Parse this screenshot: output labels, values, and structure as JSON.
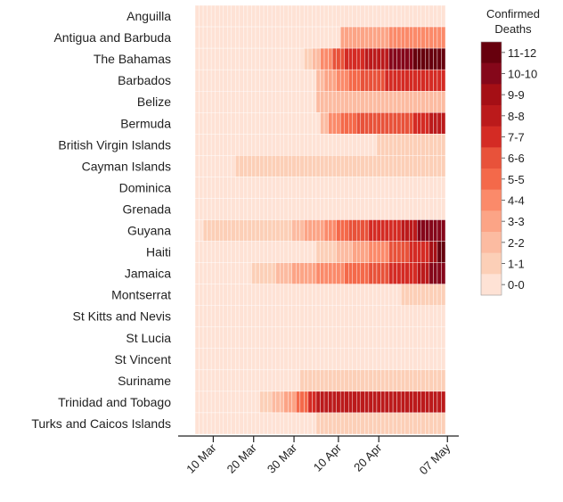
{
  "chart_data": {
    "type": "heatmap",
    "title": "",
    "xlabel": "",
    "ylabel": "",
    "x_ticks": [
      "10 Mar",
      "20 Mar",
      "30 Mar",
      "10 Apr",
      "20 Apr",
      "07 May"
    ],
    "x_range": [
      "06 Mar",
      "07 May"
    ],
    "rows": [
      {
        "name": "Anguilla",
        "segments": []
      },
      {
        "name": "Antigua and Barbuda",
        "segments": [
          [
            36,
            3
          ],
          [
            48,
            4
          ]
        ]
      },
      {
        "name": "The Bahamas",
        "segments": [
          [
            27,
            1
          ],
          [
            29,
            2
          ],
          [
            31,
            4
          ],
          [
            34,
            6
          ],
          [
            37,
            7
          ],
          [
            42,
            8
          ],
          [
            48,
            10
          ],
          [
            54,
            11
          ]
        ]
      },
      {
        "name": "Barbados",
        "segments": [
          [
            30,
            2
          ],
          [
            32,
            3
          ],
          [
            35,
            4
          ],
          [
            38,
            5
          ],
          [
            41,
            6
          ],
          [
            47,
            7
          ]
        ]
      },
      {
        "name": "Belize",
        "segments": [
          [
            30,
            2
          ]
        ]
      },
      {
        "name": "Bermuda",
        "segments": [
          [
            31,
            2
          ],
          [
            33,
            4
          ],
          [
            36,
            5
          ],
          [
            40,
            6
          ],
          [
            54,
            7
          ],
          [
            58,
            8
          ]
        ]
      },
      {
        "name": "British Virgin Islands",
        "segments": [
          [
            45,
            1
          ]
        ]
      },
      {
        "name": "Cayman Islands",
        "segments": [
          [
            10,
            1
          ]
        ]
      },
      {
        "name": "Dominica",
        "segments": []
      },
      {
        "name": "Grenada",
        "segments": []
      },
      {
        "name": "Guyana",
        "segments": [
          [
            2,
            1
          ],
          [
            24,
            2
          ],
          [
            27,
            3
          ],
          [
            32,
            4
          ],
          [
            35,
            5
          ],
          [
            38,
            6
          ],
          [
            43,
            7
          ],
          [
            51,
            8
          ],
          [
            55,
            10
          ]
        ]
      },
      {
        "name": "Haiti",
        "segments": [
          [
            30,
            1
          ],
          [
            35,
            2
          ],
          [
            39,
            3
          ],
          [
            43,
            4
          ],
          [
            48,
            6
          ],
          [
            53,
            7
          ],
          [
            58,
            9
          ],
          [
            60,
            11
          ]
        ]
      },
      {
        "name": "Jamaica",
        "segments": [
          [
            14,
            1
          ],
          [
            20,
            2
          ],
          [
            24,
            3
          ],
          [
            30,
            4
          ],
          [
            37,
            5
          ],
          [
            43,
            6
          ],
          [
            48,
            7
          ],
          [
            55,
            8
          ],
          [
            58,
            10
          ]
        ]
      },
      {
        "name": "Montserrat",
        "segments": [
          [
            51,
            1
          ]
        ]
      },
      {
        "name": "St Kitts and Nevis",
        "segments": []
      },
      {
        "name": "St Lucia",
        "segments": []
      },
      {
        "name": "St Vincent",
        "segments": []
      },
      {
        "name": "Suriname",
        "segments": [
          [
            26,
            1
          ]
        ]
      },
      {
        "name": "Trinidad and Tobago",
        "segments": [
          [
            16,
            1
          ],
          [
            19,
            2
          ],
          [
            22,
            3
          ],
          [
            25,
            5
          ],
          [
            28,
            7
          ],
          [
            30,
            8
          ]
        ]
      },
      {
        "name": "Turks and Caicos Islands",
        "segments": [
          [
            30,
            1
          ]
        ]
      }
    ],
    "legend": {
      "title": [
        "Confirmed",
        "Deaths"
      ],
      "position": "right",
      "labels": [
        "11-12",
        "10-10",
        "9-9",
        "8-8",
        "7-7",
        "6-6",
        "5-5",
        "4-4",
        "3-3",
        "2-2",
        "1-1",
        "0-0"
      ],
      "colors": [
        "#67000d",
        "#85071a",
        "#a50f15",
        "#bb1a1b",
        "#d42b24",
        "#e8523a",
        "#f4694a",
        "#fb8a6a",
        "#fca486",
        "#fcbba1",
        "#fccfb7",
        "#fee2d5"
      ]
    },
    "grid": false
  }
}
